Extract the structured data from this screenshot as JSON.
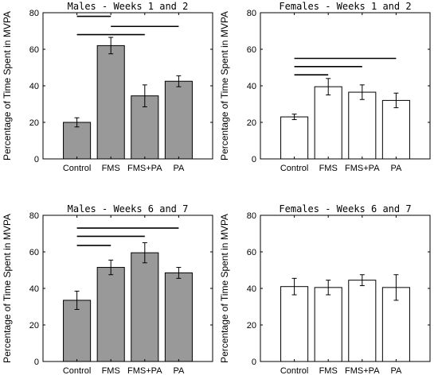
{
  "chart_data": [
    {
      "type": "bar",
      "title": "Males - Weeks 1 and 2",
      "ylabel": "Percentage of Time Spent in MVPA",
      "xlabel": "",
      "categories": [
        "Control",
        "FMS",
        "FMS+PA",
        "PA"
      ],
      "values": [
        20,
        62,
        34.5,
        42.5
      ],
      "errors": [
        2.5,
        4.5,
        6,
        3
      ],
      "ylim": [
        0,
        80
      ],
      "yticks": [
        0,
        20,
        40,
        60,
        80
      ],
      "bar_color": "#999999",
      "significance_brackets": [
        {
          "from": "Control",
          "to": "FMS",
          "y": 78
        },
        {
          "from": "FMS",
          "to": "PA",
          "y": 72.5
        },
        {
          "from": "Control",
          "to": "FMS+PA",
          "y": 68
        }
      ]
    },
    {
      "type": "bar",
      "title": "Females - Weeks 1 and 2",
      "ylabel": "Percentage of Time Spent in MVPA",
      "xlabel": "",
      "categories": [
        "Control",
        "FMS",
        "FMS+PA",
        "PA"
      ],
      "values": [
        23,
        39.5,
        36.5,
        32
      ],
      "errors": [
        1.5,
        4.5,
        4,
        4
      ],
      "ylim": [
        0,
        80
      ],
      "yticks": [
        0,
        20,
        40,
        60,
        80
      ],
      "bar_color": "#ffffff",
      "significance_brackets": [
        {
          "from": "Control",
          "to": "PA",
          "y": 55
        },
        {
          "from": "Control",
          "to": "FMS+PA",
          "y": 50.5
        },
        {
          "from": "Control",
          "to": "FMS",
          "y": 46
        }
      ]
    },
    {
      "type": "bar",
      "title": "Males - Weeks 6 and 7",
      "ylabel": "Percentage of Time Spent in MVPA",
      "xlabel": "",
      "categories": [
        "Control",
        "FMS",
        "FMS+PA",
        "PA"
      ],
      "values": [
        33.5,
        51.5,
        59.5,
        48.5
      ],
      "errors": [
        5,
        4,
        5.5,
        3
      ],
      "ylim": [
        0,
        80
      ],
      "yticks": [
        0,
        20,
        40,
        60,
        80
      ],
      "bar_color": "#999999",
      "significance_brackets": [
        {
          "from": "Control",
          "to": "PA",
          "y": 73
        },
        {
          "from": "Control",
          "to": "FMS+PA",
          "y": 68.5
        },
        {
          "from": "Control",
          "to": "FMS",
          "y": 63.5
        }
      ]
    },
    {
      "type": "bar",
      "title": "Females - Weeks 6 and 7",
      "ylabel": "Percentage of Time Spent in MVPA",
      "xlabel": "",
      "categories": [
        "Control",
        "FMS",
        "FMS+PA",
        "PA"
      ],
      "values": [
        41,
        40.5,
        44.5,
        40.5
      ],
      "errors": [
        4.5,
        4,
        3,
        7
      ],
      "ylim": [
        0,
        80
      ],
      "yticks": [
        0,
        20,
        40,
        60,
        80
      ],
      "bar_color": "#ffffff",
      "significance_brackets": []
    }
  ]
}
